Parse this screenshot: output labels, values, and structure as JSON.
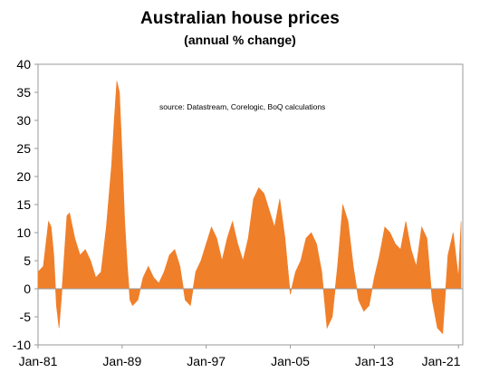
{
  "chart_data": {
    "type": "area",
    "title": "Australian house prices",
    "subtitle": "(annual % change)",
    "source_note": "source:  Datastream, Corelogic, BoQ calculations",
    "xlabel": "",
    "ylabel": "",
    "x_tick_labels": [
      "Jan-81",
      "Jan-89",
      "Jan-97",
      "Jan-05",
      "Jan-13",
      "Jan-21"
    ],
    "y_ticks": [
      "40",
      "35",
      "30",
      "25",
      "20",
      "15",
      "10",
      "5",
      "0",
      "-5",
      "-10"
    ],
    "ylim": [
      -10,
      40
    ],
    "xlim": [
      "1981-01",
      "2021-06"
    ],
    "grid": false,
    "color": "#f07f2a",
    "series": [
      {
        "x": [
          "1981-01",
          "1981-07",
          "1982-01",
          "1982-04",
          "1982-07",
          "1982-10",
          "1983-01",
          "1983-04",
          "1983-07",
          "1983-10",
          "1984-01",
          "1984-07",
          "1985-01",
          "1985-07",
          "1986-01",
          "1986-07",
          "1987-01",
          "1987-07",
          "1988-01",
          "1988-04",
          "1988-07",
          "1988-10",
          "1989-01",
          "1989-04",
          "1989-07",
          "1989-10",
          "1990-01",
          "1990-07",
          "1991-01",
          "1991-07",
          "1992-01",
          "1992-07",
          "1993-01",
          "1993-07",
          "1994-01",
          "1994-07",
          "1995-01",
          "1995-07",
          "1996-01",
          "1996-07",
          "1997-01",
          "1997-07",
          "1998-01",
          "1998-07",
          "1999-01",
          "1999-07",
          "2000-01",
          "2000-07",
          "2001-01",
          "2001-07",
          "2002-01",
          "2002-07",
          "2003-01",
          "2003-07",
          "2004-01",
          "2004-07",
          "2005-01",
          "2005-07",
          "2006-01",
          "2006-07",
          "2007-01",
          "2007-07",
          "2008-01",
          "2008-07",
          "2009-01",
          "2009-07",
          "2010-01",
          "2010-07",
          "2011-01",
          "2011-07",
          "2012-01",
          "2012-07",
          "2013-01",
          "2013-07",
          "2014-01",
          "2014-07",
          "2015-01",
          "2015-07",
          "2016-01",
          "2016-07",
          "2017-01",
          "2017-07",
          "2018-01",
          "2018-07",
          "2019-01",
          "2019-07",
          "2020-01",
          "2020-07",
          "2021-01",
          "2021-04"
        ],
        "values": [
          3,
          4,
          12,
          11,
          6,
          -3,
          -7,
          -1,
          6,
          13,
          13.5,
          9,
          6,
          7,
          5,
          2,
          3,
          11,
          22,
          30,
          37,
          35,
          24,
          12,
          4,
          -2,
          -3,
          -2,
          2,
          4,
          2,
          1,
          3,
          6,
          7,
          4,
          -2,
          -3,
          3,
          5,
          8,
          11,
          9,
          5,
          9,
          12,
          8,
          5,
          9,
          16,
          18,
          17,
          14,
          11,
          16,
          9,
          -1,
          3,
          5,
          9,
          10,
          8,
          3,
          -7,
          -5,
          4,
          15,
          12,
          4,
          -2,
          -4,
          -3,
          2,
          6,
          11,
          10,
          8,
          7,
          12,
          7,
          4,
          11,
          9,
          -2,
          -7,
          -8,
          6,
          10,
          2,
          12
        ]
      }
    ]
  }
}
